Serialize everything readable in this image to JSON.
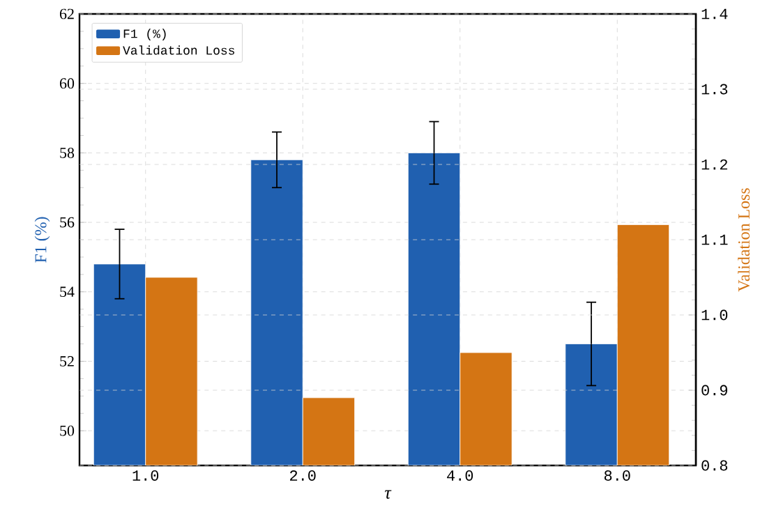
{
  "chart_data": {
    "type": "bar",
    "xlabel": "τ",
    "ylabel": "F1 (%)",
    "y2label": "Validation Loss",
    "categories": [
      "1.0",
      "2.0",
      "4.0",
      "8.0"
    ],
    "series": [
      {
        "name": "F1 (%)",
        "color": "#2060b0",
        "values": [
          54.8,
          57.8,
          58.0,
          52.5
        ],
        "errors": [
          [
            53.8,
            55.8
          ],
          [
            57.0,
            58.6
          ],
          [
            57.1,
            58.9
          ],
          [
            51.3,
            53.7
          ]
        ]
      },
      {
        "name": "Validation Loss",
        "color": "#d47514",
        "axis": "y2",
        "values": [
          1.05,
          0.89,
          0.95,
          1.12
        ]
      }
    ],
    "ylim": [
      49,
      62
    ],
    "yticks": [
      50,
      52,
      54,
      56,
      58,
      60,
      62
    ],
    "y2lim": [
      0.8,
      1.4
    ],
    "y2ticks": [
      0.8,
      0.9,
      {
        "value": 1.0,
        "label": "1.0"
      },
      1.1,
      1.2,
      1.3,
      1.4
    ],
    "grid": true,
    "legend": "top left"
  }
}
